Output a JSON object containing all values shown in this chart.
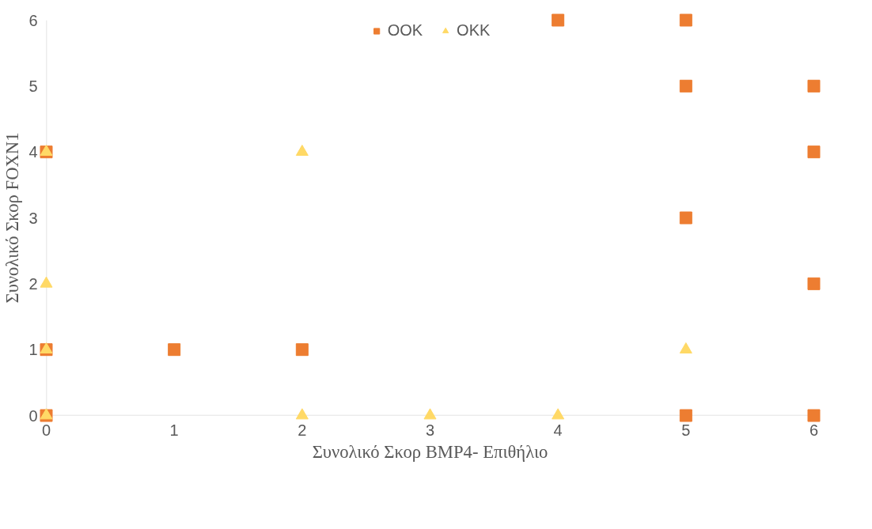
{
  "chart_data": {
    "type": "scatter",
    "xlabel": "Συνολικό Σκορ BMP4- Επιθήλιο",
    "ylabel": "Συνολικό Σκορ FOXN1",
    "xlim": [
      0,
      6
    ],
    "ylim": [
      0,
      6
    ],
    "xticks": [
      0,
      1,
      2,
      3,
      4,
      5,
      6
    ],
    "yticks": [
      0,
      1,
      2,
      3,
      4,
      5,
      6
    ],
    "grid": false,
    "legend": "top",
    "series": [
      {
        "name": "OOK",
        "color": "#ed7d31",
        "marker": "square",
        "x": [
          0,
          0,
          0,
          1,
          2,
          4,
          5,
          5,
          5,
          5,
          6,
          6,
          6,
          6
        ],
        "values": [
          4,
          1,
          0,
          1,
          1,
          6,
          6,
          5,
          3,
          0,
          5,
          4,
          2,
          0
        ]
      },
      {
        "name": "OKK",
        "color": "#ffd966",
        "marker": "triangle",
        "x": [
          0,
          0,
          0,
          0,
          2,
          2,
          3,
          4,
          5
        ],
        "values": [
          4,
          2,
          1,
          0,
          4,
          0,
          0,
          0,
          1
        ]
      }
    ]
  }
}
